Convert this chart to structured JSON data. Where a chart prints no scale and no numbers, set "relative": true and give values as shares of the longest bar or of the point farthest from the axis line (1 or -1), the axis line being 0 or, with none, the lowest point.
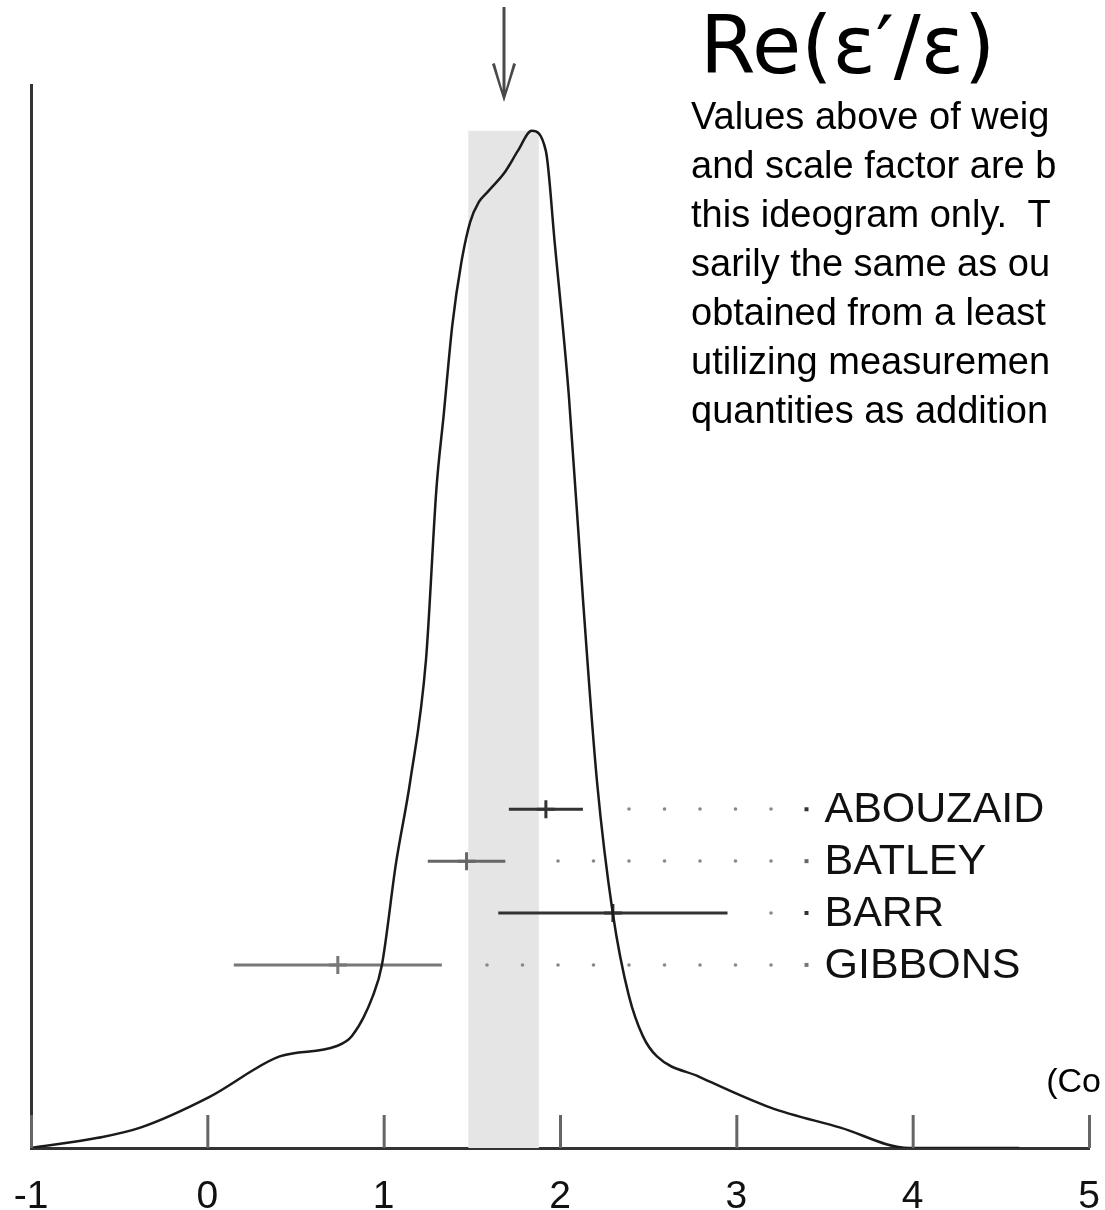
{
  "chart_data": {
    "type": "line",
    "title": "Re(ε′/ε)",
    "relative": true,
    "xlim": [
      -1,
      5
    ],
    "xticks": [
      -1,
      0,
      1,
      2,
      3,
      4,
      5
    ],
    "grid": false,
    "legend": "right",
    "series": [
      {
        "color": "#1a1a1a",
        "x": [
          -1.0,
          -0.62,
          -0.38,
          0.01,
          0.41,
          0.73,
          0.82,
          0.94,
          0.99,
          1.07,
          1.15,
          1.24,
          1.3,
          1.34,
          1.39,
          1.44,
          1.49,
          1.54,
          1.59,
          1.69,
          1.76,
          1.84,
          1.92,
          1.97,
          2.05,
          2.13,
          2.21,
          2.3,
          2.39,
          2.47,
          2.55,
          2.79,
          3.19,
          3.59,
          3.98,
          4.6
        ],
        "values": [
          0.0,
          0.01,
          0.02,
          0.05,
          0.09,
          0.1,
          0.11,
          0.15,
          0.18,
          0.28,
          0.36,
          0.48,
          0.65,
          0.72,
          0.81,
          0.87,
          0.91,
          0.93,
          0.94,
          0.96,
          0.98,
          1.0,
          0.98,
          0.89,
          0.74,
          0.54,
          0.36,
          0.23,
          0.15,
          0.11,
          0.09,
          0.07,
          0.04,
          0.02,
          0.0,
          0.0
        ]
      },
      {
        "type": "scatter",
        "name": "ABOUZAID",
        "color": "#333333",
        "marker": "cross",
        "x": [
          1.92
        ],
        "values": [
          0.333
        ],
        "xerrors": [
          0.21
        ]
      },
      {
        "type": "scatter",
        "name": "BATLEY",
        "color": "#666666",
        "marker": "cross",
        "x": [
          1.47
        ],
        "values": [
          0.282
        ],
        "xerrors": [
          0.22
        ]
      },
      {
        "type": "scatter",
        "name": "BARR",
        "color": "#333333",
        "marker": "cross",
        "x": [
          2.3
        ],
        "values": [
          0.231
        ],
        "xerrors": [
          0.65
        ]
      },
      {
        "type": "scatter",
        "name": "GIBBONS",
        "color": "#777777",
        "marker": "cross",
        "x": [
          0.74
        ],
        "values": [
          0.18
        ],
        "xerrors": [
          0.59
        ]
      }
    ],
    "bands": [
      {
        "axis": "x",
        "from": 1.48,
        "to": 1.88,
        "color": "#e5e5e5"
      }
    ],
    "annotations": [
      "Values above of weig\nand scale factor are b\nthis ideogram only.  T\nsarily the same as ou\nobtained from a least\nutilizing measuremen\nquantities as addition",
      "(Co"
    ]
  }
}
